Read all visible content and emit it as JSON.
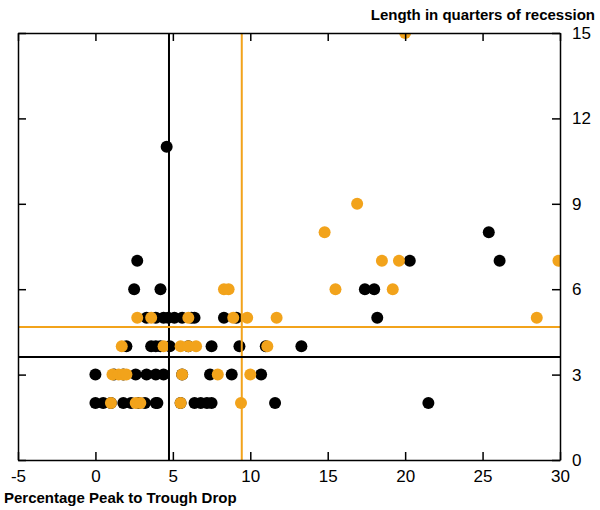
{
  "chart_data": {
    "type": "scatter",
    "y_label": "Length in quarters of recession",
    "x_label": "Percentage Peak to Trough Drop",
    "xlim": [
      -5,
      30
    ],
    "xticks": [
      -5,
      0,
      5,
      10,
      15,
      20,
      25,
      30
    ],
    "ylim": [
      0,
      15
    ],
    "yticks": [
      0,
      3,
      6,
      9,
      12,
      15
    ],
    "marker": "circle",
    "series": [
      {
        "color": "#000000",
        "x": [
          4.6,
          2.7,
          2.5,
          4.2,
          25.4,
          26.1,
          20.3,
          17.4,
          18.0,
          18.2,
          21.5,
          13.3,
          11.6,
          3.3,
          3.9,
          4.4,
          4.7,
          5.1,
          5.6,
          6.2,
          6.4,
          8.3,
          9.1,
          2.0,
          3.6,
          3.9,
          4.2,
          4.8,
          6.0,
          7.5,
          9.3,
          11.0,
          0,
          1.2,
          1.8,
          2.6,
          3.3,
          3.9,
          4.4,
          5.6,
          7.4,
          8.8,
          10.7,
          0,
          0.5,
          1.0,
          1.8,
          2.3,
          2.8,
          3.2,
          3.9,
          4.0,
          5.5,
          6.4,
          6.8,
          7.2,
          7.5
        ],
        "values": [
          11,
          7,
          6,
          6,
          8,
          7,
          7,
          6,
          6,
          5,
          2,
          4,
          2,
          5,
          5,
          5,
          5,
          5,
          5,
          5,
          5,
          5,
          5,
          4,
          4,
          4,
          4,
          4,
          4,
          4,
          4,
          4,
          3,
          3,
          3,
          3,
          3,
          3,
          3,
          3,
          3,
          3,
          3,
          2,
          2,
          2,
          2,
          2,
          2,
          2,
          2,
          2,
          2,
          2,
          2,
          2,
          2
        ]
      },
      {
        "color": "#f2a31b",
        "x": [
          20.0,
          16.9,
          14.8,
          19.6,
          18.5,
          29.9,
          15.5,
          19.2,
          28.5,
          8.3,
          8.6,
          2.7,
          3.6,
          6.0,
          8.9,
          9.8,
          11.7,
          1.7,
          4.4,
          5.5,
          6.0,
          6.5,
          11.1,
          1.1,
          1.5,
          1.8,
          2.0,
          5.6,
          7.9,
          10.0,
          1.0,
          2.6,
          2.9,
          5.5,
          9.4
        ],
        "values": [
          15,
          9,
          8,
          7,
          7,
          7,
          6,
          6,
          5,
          6,
          6,
          5,
          5,
          5,
          5,
          5,
          5,
          4,
          4,
          4,
          4,
          4,
          4,
          3,
          3,
          3,
          3,
          3,
          3,
          3,
          2,
          2,
          2,
          2,
          2
        ]
      }
    ],
    "reference_lines": [
      {
        "axis": "x",
        "value": 4.75,
        "color": "#000000"
      },
      {
        "axis": "x",
        "value": 9.45,
        "color": "#f2a31b"
      },
      {
        "axis": "y",
        "value": 3.62,
        "color": "#000000"
      },
      {
        "axis": "y",
        "value": 4.67,
        "color": "#f2a31b"
      }
    ]
  }
}
